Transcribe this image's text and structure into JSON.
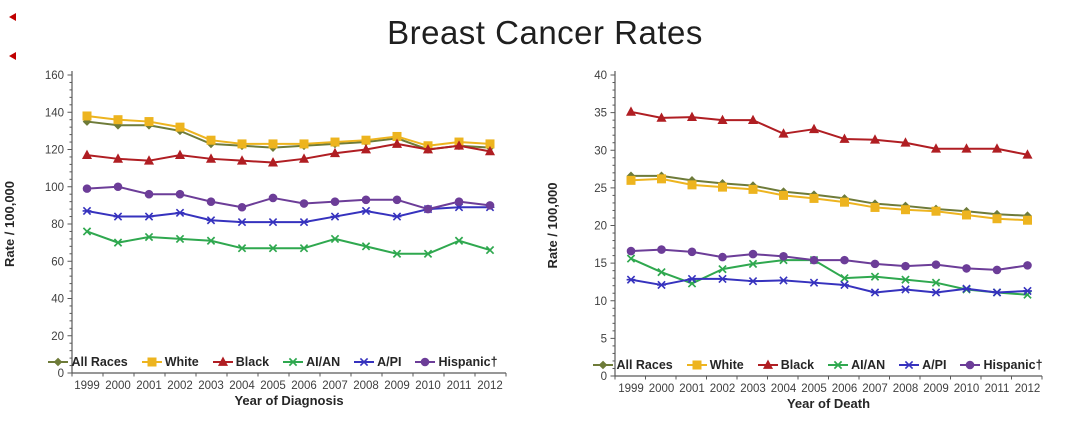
{
  "title": "Breast Cancer Rates",
  "chart_data": [
    {
      "type": "line",
      "title": "",
      "xlabel": "Year of Diagnosis",
      "ylabel": "Rate / 100,000",
      "x": [
        "1999",
        "2000",
        "2001",
        "2002",
        "2003",
        "2004",
        "2005",
        "2006",
        "2007",
        "2008",
        "2009",
        "2010",
        "2011",
        "2012"
      ],
      "ylim": [
        0,
        160
      ],
      "ytick_step": 20,
      "minor_tick_step": 4,
      "grid": false,
      "legend_position": "bottom-inside",
      "series": [
        {
          "name": "All Races",
          "marker": "diamond",
          "color": "#6E7B39",
          "values": [
            135,
            133,
            133,
            130,
            123,
            122,
            121,
            122,
            123,
            124,
            126,
            120,
            122,
            121
          ]
        },
        {
          "name": "White",
          "marker": "square",
          "color": "#EDB41F",
          "values": [
            138,
            136,
            135,
            132,
            125,
            123,
            123,
            123,
            124,
            125,
            127,
            122,
            124,
            123
          ]
        },
        {
          "name": "Black",
          "marker": "triangle",
          "color": "#B01E23",
          "values": [
            117,
            115,
            114,
            117,
            115,
            114,
            113,
            115,
            118,
            120,
            123,
            120,
            122,
            119
          ]
        },
        {
          "name": "AI/AN",
          "marker": "x",
          "color": "#2FA84F",
          "values": [
            76,
            70,
            73,
            72,
            71,
            67,
            67,
            67,
            72,
            68,
            64,
            64,
            71,
            66
          ]
        },
        {
          "name": "A/PI",
          "marker": "star",
          "color": "#3632BE",
          "values": [
            87,
            84,
            84,
            86,
            82,
            81,
            81,
            81,
            84,
            87,
            84,
            88,
            89,
            89
          ]
        },
        {
          "name": "Hispanic†",
          "marker": "circle",
          "color": "#6C3D98",
          "values": [
            99,
            100,
            96,
            96,
            92,
            89,
            94,
            91,
            92,
            93,
            93,
            88,
            92,
            90
          ]
        }
      ]
    },
    {
      "type": "line",
      "title": "",
      "xlabel": "Year of Death",
      "ylabel": "Rate / 100,000",
      "x": [
        "1999",
        "2000",
        "2001",
        "2002",
        "2003",
        "2004",
        "2005",
        "2006",
        "2007",
        "2008",
        "2009",
        "2010",
        "2011",
        "2012"
      ],
      "ylim": [
        0,
        40
      ],
      "ytick_step": 5,
      "minor_tick_step": 1,
      "grid": false,
      "legend_position": "bottom-inside",
      "series": [
        {
          "name": "All Races",
          "marker": "diamond",
          "color": "#6E7B39",
          "values": [
            26.6,
            26.6,
            26.0,
            25.6,
            25.3,
            24.5,
            24.1,
            23.6,
            22.9,
            22.6,
            22.2,
            21.9,
            21.5,
            21.3
          ]
        },
        {
          "name": "White",
          "marker": "square",
          "color": "#EDB41F",
          "values": [
            26.0,
            26.2,
            25.4,
            25.1,
            24.8,
            24.0,
            23.6,
            23.1,
            22.4,
            22.1,
            21.9,
            21.4,
            20.9,
            20.7
          ]
        },
        {
          "name": "Black",
          "marker": "triangle",
          "color": "#B01E23",
          "values": [
            35.1,
            34.3,
            34.4,
            34.0,
            34.0,
            32.2,
            32.8,
            31.5,
            31.4,
            31.0,
            30.2,
            30.2,
            30.2,
            29.4
          ]
        },
        {
          "name": "AI/AN",
          "marker": "x",
          "color": "#2FA84F",
          "values": [
            15.6,
            13.8,
            12.3,
            14.2,
            14.9,
            15.4,
            15.4,
            13.0,
            13.2,
            12.8,
            12.4,
            11.5,
            11.1,
            10.8
          ]
        },
        {
          "name": "A/PI",
          "marker": "star",
          "color": "#3632BE",
          "values": [
            12.8,
            12.1,
            12.9,
            12.9,
            12.6,
            12.7,
            12.4,
            12.1,
            11.1,
            11.5,
            11.1,
            11.6,
            11.1,
            11.3
          ]
        },
        {
          "name": "Hispanic†",
          "marker": "circle",
          "color": "#6C3D98",
          "values": [
            16.6,
            16.8,
            16.5,
            15.8,
            16.2,
            15.9,
            15.4,
            15.4,
            14.9,
            14.6,
            14.8,
            14.3,
            14.1,
            14.7
          ]
        }
      ]
    }
  ],
  "styles": {
    "axis_color": "#595959",
    "tick_label_color": "#3f3f3f",
    "axis_title_color": "#262626"
  }
}
